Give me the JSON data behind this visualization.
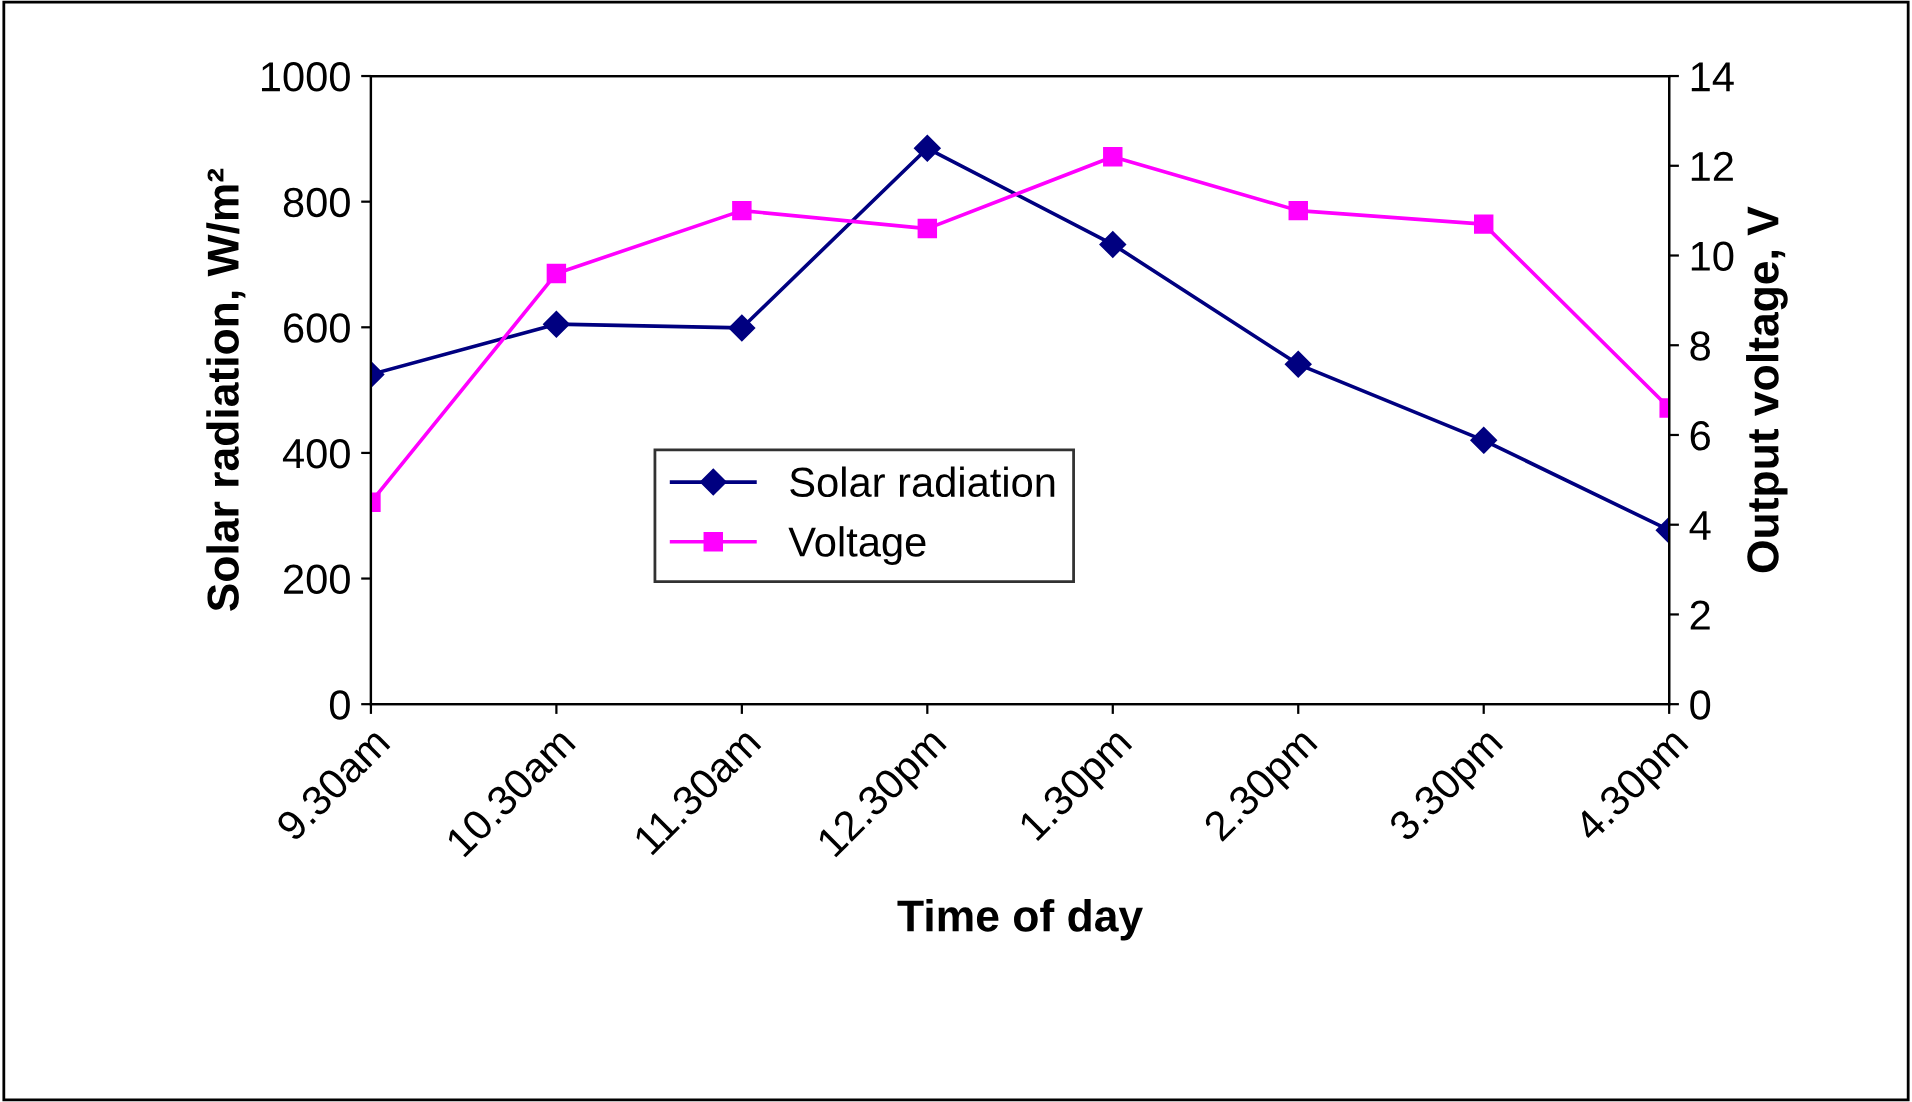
{
  "chart_data": {
    "type": "line",
    "xlabel": "Time of day",
    "ylabel": "Solar radiation, W/m²",
    "y2label": "Output voltage, V",
    "categories": [
      "9.30am",
      "10.30am",
      "11.30am",
      "12.30pm",
      "1.30pm",
      "2.30pm",
      "3.30pm",
      "4.30pm"
    ],
    "series": [
      {
        "name": "Solar radiation",
        "color": "#000080",
        "marker": "diamond",
        "values": [
          525,
          605,
          599,
          885,
          732,
          541,
          420,
          277
        ]
      },
      {
        "name": "Voltage",
        "color": "#ff00ff",
        "marker": "square",
        "axis": "y2",
        "values": [
          4.5,
          9.6,
          11.0,
          10.6,
          12.2,
          11.0,
          10.7,
          6.6
        ]
      }
    ],
    "ylim": [
      0,
      1000
    ],
    "yticks": [
      0,
      200,
      400,
      600,
      800,
      1000
    ],
    "y2lim": [
      0,
      14
    ],
    "y2ticks": [
      0,
      2,
      4,
      6,
      8,
      10,
      12,
      14
    ],
    "grid": false,
    "legend": "center",
    "line_style": "solid"
  }
}
